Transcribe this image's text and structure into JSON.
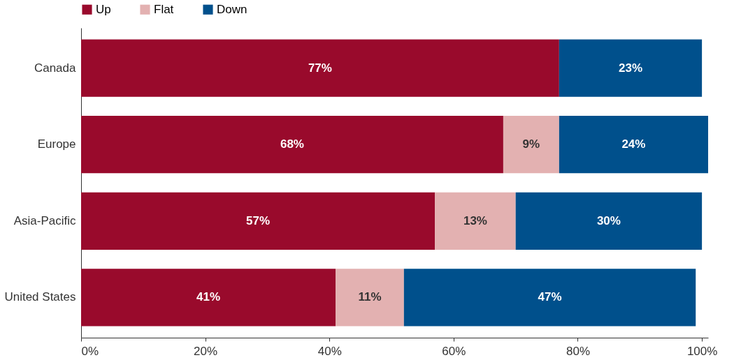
{
  "chart_data": {
    "type": "bar",
    "orientation": "horizontal",
    "stacked": true,
    "categories": [
      "Canada",
      "Europe",
      "Asia-Pacific",
      "United States"
    ],
    "series": [
      {
        "name": "Up",
        "color": "#990a2c",
        "values": [
          77,
          68,
          57,
          41
        ],
        "value_labels": [
          "77%",
          "68%",
          "57%",
          "41%"
        ]
      },
      {
        "name": "Flat",
        "color": "#e3b1b1",
        "values": [
          null,
          9,
          13,
          11
        ],
        "value_labels": [
          null,
          "9%",
          "13%",
          "11%"
        ]
      },
      {
        "name": "Down",
        "color": "#00508c",
        "values": [
          23,
          24,
          30,
          47
        ],
        "value_labels": [
          "23%",
          "24%",
          "30%",
          "47%"
        ]
      }
    ],
    "xlim": [
      0,
      101
    ],
    "xticks": [
      {
        "value": 0,
        "label": "0%"
      },
      {
        "value": 20,
        "label": "20%"
      },
      {
        "value": 40,
        "label": "40%"
      },
      {
        "value": 60,
        "label": "60%"
      },
      {
        "value": 80,
        "label": "80%"
      },
      {
        "value": 100,
        "label": "100%"
      }
    ],
    "legend": "top",
    "grid": false
  }
}
